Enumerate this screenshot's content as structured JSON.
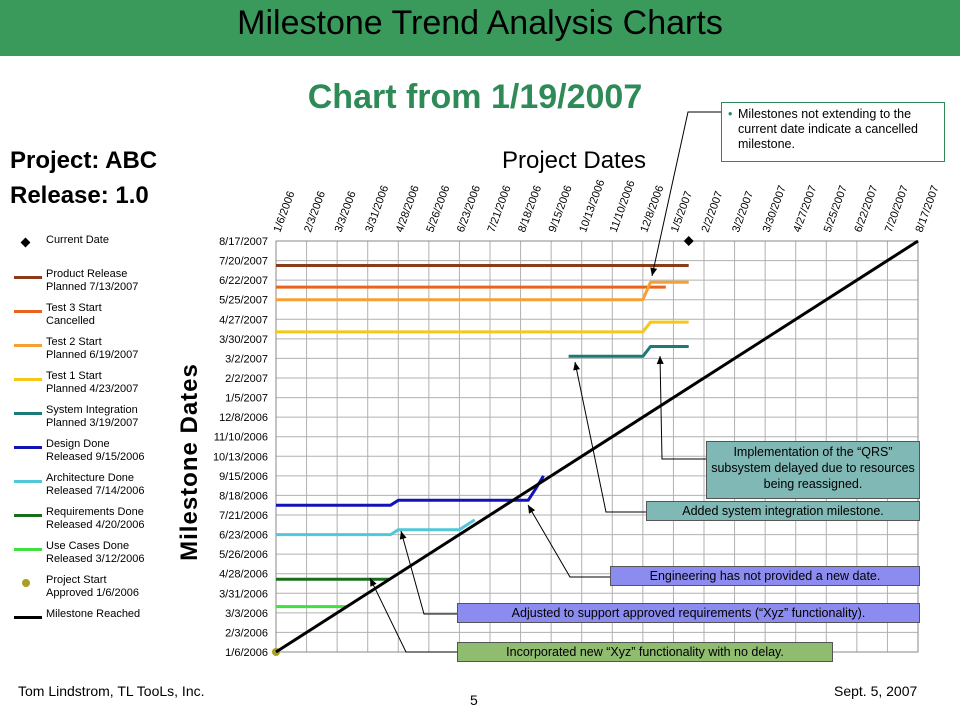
{
  "header": {
    "title": "Milestone Trend Analysis Charts",
    "subtitle": "Chart from 1/19/2007"
  },
  "project": {
    "project_label": "Project: ABC",
    "release_label": "Release: 1.0"
  },
  "colors": {
    "title_bar": "#3a9a5c",
    "heading_green": "#2e8b57",
    "callout_blue": "#8c8cf0",
    "callout_green": "#8fbc6e",
    "callout_teal": "#7fb8b4"
  },
  "chart_data": {
    "type": "line",
    "title": "Project Dates",
    "xlabel": "Project Dates",
    "ylabel": "Milestone Dates",
    "x_ticks": [
      "1/6/2006",
      "2/3/2006",
      "3/3/2006",
      "3/31/2006",
      "4/28/2006",
      "5/26/2006",
      "6/23/2006",
      "7/21/2006",
      "8/18/2006",
      "9/15/2006",
      "10/13/2006",
      "11/10/2006",
      "12/8/2006",
      "1/5/2007",
      "2/2/2007",
      "3/2/2007",
      "3/30/2007",
      "4/27/2007",
      "5/25/2007",
      "6/22/2007",
      "7/20/2007",
      "8/17/2007"
    ],
    "y_ticks": [
      "1/6/2006",
      "2/3/2006",
      "3/3/2006",
      "3/31/2006",
      "4/28/2006",
      "5/26/2006",
      "6/23/2006",
      "7/21/2006",
      "8/18/2006",
      "9/15/2006",
      "10/13/2006",
      "11/10/2006",
      "12/8/2006",
      "1/5/2007",
      "2/2/2007",
      "3/2/2007",
      "3/30/2007",
      "4/27/2007",
      "5/25/2007",
      "6/22/2007",
      "7/20/2007",
      "8/17/2007"
    ],
    "grid": true,
    "legend_position": "left",
    "series": [
      {
        "name": "Current Date",
        "marker": "diamond",
        "color": "#000000",
        "points": [
          [
            "1/19/2007",
            "8/17/2007"
          ]
        ]
      },
      {
        "name": "Product Release Planned 7/13/2007",
        "color": "#8b3a1a",
        "points": [
          [
            "1/6/2006",
            "7/13/2007"
          ],
          [
            "1/19/2007",
            "7/13/2007"
          ]
        ]
      },
      {
        "name": "Test 3 Start Cancelled",
        "color": "#e8641e",
        "points": [
          [
            "1/6/2006",
            "6/12/2007"
          ],
          [
            "12/29/2006",
            "6/12/2007"
          ]
        ]
      },
      {
        "name": "Test 2 Start Planned 6/19/2007",
        "color": "#f5a030",
        "points": [
          [
            "1/6/2006",
            "5/25/2007"
          ],
          [
            "12/8/2006",
            "5/25/2007"
          ],
          [
            "12/15/2006",
            "6/19/2007"
          ],
          [
            "1/19/2007",
            "6/19/2007"
          ]
        ]
      },
      {
        "name": "Test 1 Start Planned 4/23/2007",
        "color": "#f5c818",
        "points": [
          [
            "1/6/2006",
            "4/9/2007"
          ],
          [
            "12/8/2006",
            "4/9/2007"
          ],
          [
            "12/15/2006",
            "4/23/2007"
          ],
          [
            "1/19/2007",
            "4/23/2007"
          ]
        ]
      },
      {
        "name": "System Integration Planned 3/19/2007",
        "color": "#1a7a78",
        "points": [
          [
            "10/1/2006",
            "3/5/2007"
          ],
          [
            "12/8/2006",
            "3/5/2007"
          ],
          [
            "12/15/2006",
            "3/19/2007"
          ],
          [
            "1/19/2007",
            "3/19/2007"
          ]
        ]
      },
      {
        "name": "Design Done Released 9/15/2006",
        "color": "#1212b8",
        "points": [
          [
            "1/6/2006",
            "8/4/2006"
          ],
          [
            "4/21/2006",
            "8/4/2006"
          ],
          [
            "4/28/2006",
            "8/11/2006"
          ],
          [
            "8/25/2006",
            "8/11/2006"
          ],
          [
            "9/1/2006",
            "8/28/2006"
          ],
          [
            "9/8/2006",
            "9/15/2006"
          ]
        ]
      },
      {
        "name": "Architecture Done Released 7/14/2006",
        "color": "#50c8d8",
        "points": [
          [
            "1/6/2006",
            "6/23/2006"
          ],
          [
            "4/21/2006",
            "6/23/2006"
          ],
          [
            "4/28/2006",
            "6/30/2006"
          ],
          [
            "6/23/2006",
            "6/30/2006"
          ],
          [
            "7/7/2006",
            "7/14/2006"
          ]
        ]
      },
      {
        "name": "Requirements Done Released 4/20/2006",
        "color": "#1a6e1a",
        "points": [
          [
            "1/6/2006",
            "4/20/2006"
          ],
          [
            "4/20/2006",
            "4/20/2006"
          ]
        ]
      },
      {
        "name": "Use Cases Done Released 3/12/2006",
        "color": "#40e040",
        "points": [
          [
            "1/6/2006",
            "3/12/2006"
          ],
          [
            "3/12/2006",
            "3/12/2006"
          ]
        ]
      },
      {
        "name": "Project Start Approved 1/6/2006",
        "marker": "circle",
        "color": "#a8a020",
        "points": [
          [
            "1/6/2006",
            "1/6/2006"
          ]
        ]
      },
      {
        "name": "Milestone Reached",
        "color": "#000000",
        "points": [
          [
            "1/6/2006",
            "1/6/2006"
          ],
          [
            "8/17/2007",
            "8/17/2007"
          ]
        ]
      }
    ]
  },
  "legend": [
    {
      "line1": "Current Date",
      "line2": "",
      "color": "#000000",
      "kind": "diamond"
    },
    {
      "line1": "Product Release",
      "line2": "Planned 7/13/2007",
      "color": "#8b3a1a",
      "kind": "line"
    },
    {
      "line1": "Test 3 Start",
      "line2": "Cancelled",
      "color": "#e8641e",
      "kind": "line"
    },
    {
      "line1": "Test 2 Start",
      "line2": "Planned 6/19/2007",
      "color": "#f5a030",
      "kind": "line"
    },
    {
      "line1": "Test 1 Start",
      "line2": "Planned 4/23/2007",
      "color": "#f5c818",
      "kind": "line"
    },
    {
      "line1": "System Integration",
      "line2": "Planned 3/19/2007",
      "color": "#1a7a78",
      "kind": "line"
    },
    {
      "line1": "Design Done",
      "line2": "Released 9/15/2006",
      "color": "#1212b8",
      "kind": "line"
    },
    {
      "line1": "Architecture Done",
      "line2": "Released 7/14/2006",
      "color": "#50c8d8",
      "kind": "line"
    },
    {
      "line1": "Requirements Done",
      "line2": "Released 4/20/2006",
      "color": "#1a6e1a",
      "kind": "line"
    },
    {
      "line1": "Use Cases Done",
      "line2": "Released 3/12/2006",
      "color": "#40e040",
      "kind": "line"
    },
    {
      "line1": " Project Start",
      "line2": "Approved 1/6/2006",
      "color": "#a8a020",
      "kind": "circle"
    },
    {
      "line1": "Milestone Reached",
      "line2": "",
      "color": "#000000",
      "kind": "line"
    }
  ],
  "callouts": {
    "note": "Milestones not extending to the current date indicate a cancelled milestone.",
    "qrs": "Implementation of the “QRS” subsystem delayed due to resources being reassigned.",
    "sysint": "Added system integration milestone.",
    "engineering": "Engineering has not provided a new date.",
    "adjusted": "Adjusted to support approved requirements (“Xyz” functionality).",
    "incorporated": "Incorporated  new “Xyz” functionality with no delay."
  },
  "footer": {
    "author": "Tom Lindstrom, TL TooLs, Inc.",
    "date": "Sept. 5, 2007",
    "page": "5"
  }
}
